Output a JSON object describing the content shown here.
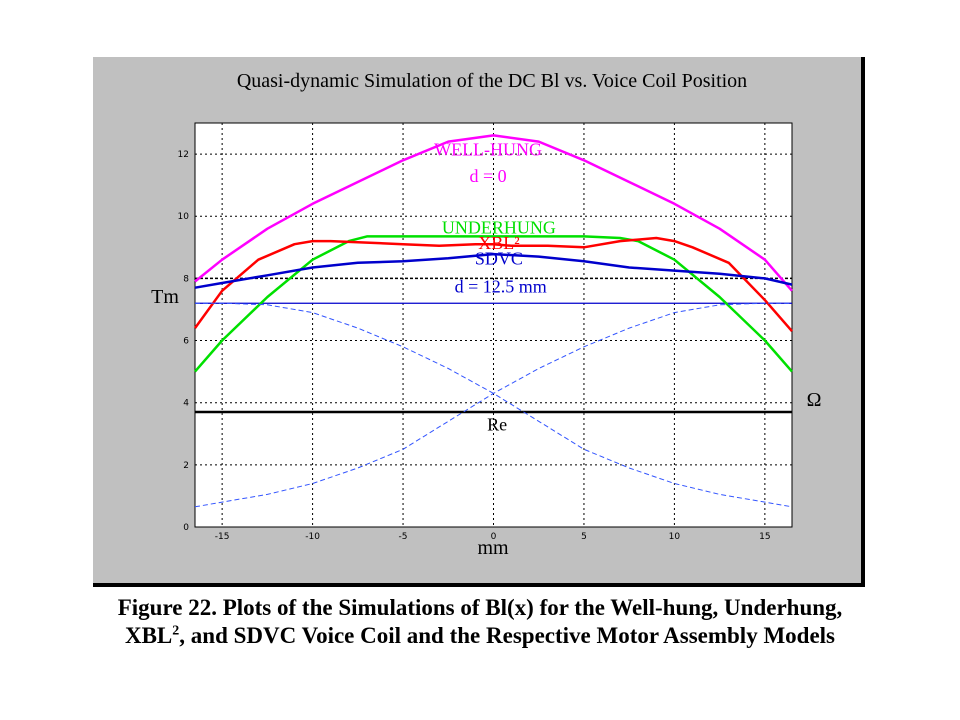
{
  "chart_data": {
    "type": "line",
    "title": "Quasi-dynamic Simulation of the DC Bl vs. Voice Coil Position",
    "xlabel": "mm",
    "ylabel_left": "Tm",
    "ylabel_right": "Ω",
    "xlim": [
      -16.5,
      16.5
    ],
    "ylim": [
      0,
      13
    ],
    "x_ticks": [
      -15,
      -10,
      -5,
      0,
      5,
      10,
      15
    ],
    "y_ticks": [
      0,
      2,
      4,
      6,
      8,
      10,
      12
    ],
    "grid": true,
    "series": [
      {
        "name": "WELL-HUNG",
        "color": "#ff00ff",
        "style": "solid",
        "x": [
          -16.5,
          -15,
          -12.5,
          -10,
          -7.5,
          -5,
          -2.5,
          0,
          2.5,
          5,
          7.5,
          10,
          12.5,
          15,
          16.5
        ],
        "y": [
          7.9,
          8.6,
          9.6,
          10.4,
          11.1,
          11.8,
          12.4,
          12.6,
          12.4,
          11.8,
          11.1,
          10.4,
          9.6,
          8.6,
          7.6
        ]
      },
      {
        "name": "UNDERHUNG",
        "color": "#00e000",
        "style": "solid",
        "x": [
          -16.5,
          -15,
          -12.5,
          -10,
          -8,
          -7,
          -5,
          0,
          5,
          7,
          8,
          10,
          12.5,
          15,
          16.5
        ],
        "y": [
          5.0,
          6.0,
          7.4,
          8.6,
          9.2,
          9.35,
          9.35,
          9.35,
          9.35,
          9.3,
          9.2,
          8.6,
          7.4,
          6.0,
          5.0
        ]
      },
      {
        "name": "XBL²",
        "color": "#ff0000",
        "style": "solid",
        "x": [
          -16.5,
          -15,
          -13,
          -11,
          -10,
          -9,
          -7,
          -5,
          -3,
          -1,
          0,
          1,
          3,
          5,
          7,
          9,
          10,
          11,
          13,
          15,
          16.5
        ],
        "y": [
          6.4,
          7.6,
          8.6,
          9.1,
          9.2,
          9.2,
          9.15,
          9.1,
          9.05,
          9.1,
          9.1,
          9.05,
          9.05,
          9.0,
          9.2,
          9.3,
          9.2,
          9.0,
          8.5,
          7.3,
          6.3
        ]
      },
      {
        "name": "SDVC",
        "color": "#0000cc",
        "style": "solid",
        "x": [
          -16.5,
          -15,
          -12.5,
          -10,
          -7.5,
          -5,
          -2.5,
          0,
          2.5,
          5,
          7.5,
          10,
          12.5,
          15,
          16.5
        ],
        "y": [
          7.7,
          7.85,
          8.1,
          8.35,
          8.5,
          8.55,
          8.65,
          8.78,
          8.7,
          8.55,
          8.35,
          8.25,
          8.15,
          8.0,
          7.8
        ]
      },
      {
        "name": "Re",
        "color": "#000000",
        "style": "solid",
        "x": [
          -16.5,
          16.5
        ],
        "y": [
          3.7,
          3.7
        ]
      },
      {
        "name": "",
        "color": "#3355ff",
        "style": "dashed",
        "x": [
          -16.5,
          -15,
          -12.5,
          -10,
          -7.5,
          -5,
          -2.5,
          0,
          2.5,
          5,
          7.5,
          10,
          12.5,
          15,
          16.5
        ],
        "y": [
          7.2,
          7.2,
          7.15,
          6.9,
          6.4,
          5.8,
          5.1,
          4.3,
          3.4,
          2.5,
          1.9,
          1.4,
          1.05,
          0.8,
          0.65
        ]
      },
      {
        "name": "",
        "color": "#3355ff",
        "style": "dashed",
        "x": [
          -16.5,
          -15,
          -12.5,
          -10,
          -7.5,
          -5,
          -2.5,
          0,
          2.5,
          5,
          7.5,
          10,
          12.5,
          15,
          16.5
        ],
        "y": [
          0.65,
          0.8,
          1.05,
          1.4,
          1.9,
          2.5,
          3.4,
          4.3,
          5.1,
          5.8,
          6.4,
          6.9,
          7.15,
          7.2,
          7.2
        ]
      }
    ],
    "reference_lines": [
      {
        "y": 8.0,
        "color": "#000000",
        "style": "dotted-dark"
      },
      {
        "y": 7.2,
        "color": "#0000cc",
        "style": "solid-thin"
      }
    ],
    "annotations": [
      {
        "text": "WELL-HUNG",
        "color": "#ff00ff",
        "x": -0.3,
        "y": 11.95
      },
      {
        "text": "d = 0",
        "color": "#ff00ff",
        "x": -0.3,
        "y": 11.1
      },
      {
        "text": "UNDERHUNG",
        "color": "#00e000",
        "x": 0.3,
        "y": 9.45
      },
      {
        "text": "XBL²",
        "color": "#ff0000",
        "x": 0.3,
        "y": 8.95
      },
      {
        "text": "SDVC",
        "color": "#0000cc",
        "x": 0.3,
        "y": 8.45
      },
      {
        "text": "d = 12.5 mm",
        "color": "#0000cc",
        "x": 0.4,
        "y": 7.55
      },
      {
        "text": "Re",
        "color": "#000000",
        "x": 0.2,
        "y": 3.1
      }
    ]
  },
  "caption": {
    "line1": "Figure 22.  Plots of the Simulations of Bl(x) for the Well-hung, Underhung,",
    "line2_pre": "XBL",
    "line2_sup": "2",
    "line2_post": ", and SDVC Voice Coil and the Respective Motor Assembly Models"
  }
}
